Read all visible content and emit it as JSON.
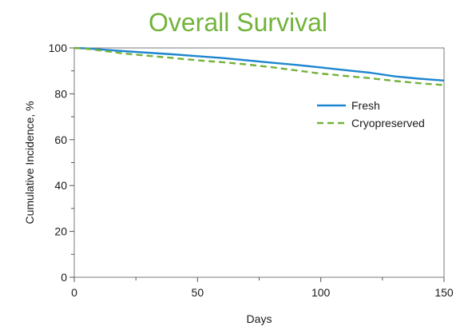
{
  "chart_data": {
    "type": "line",
    "title": "Overall Survival",
    "xlabel": "Days",
    "ylabel": "Cumulative Incidence, %",
    "xlim": [
      0,
      150
    ],
    "ylim": [
      0,
      100
    ],
    "x_ticks": [
      0,
      50,
      100,
      150
    ],
    "y_ticks": [
      0,
      20,
      40,
      60,
      80,
      100
    ],
    "grid": false,
    "legend_position": "right",
    "series": [
      {
        "name": "Fresh",
        "color": "#1f86d0",
        "style": "solid",
        "points": [
          [
            0,
            100
          ],
          [
            5,
            99.8
          ],
          [
            10,
            99.4
          ],
          [
            20,
            98.6
          ],
          [
            30,
            97.9
          ],
          [
            40,
            97.2
          ],
          [
            50,
            96.4
          ],
          [
            60,
            95.6
          ],
          [
            70,
            94.6
          ],
          [
            80,
            93.6
          ],
          [
            90,
            92.6
          ],
          [
            100,
            91.5
          ],
          [
            110,
            90.3
          ],
          [
            120,
            89.2
          ],
          [
            130,
            87.6
          ],
          [
            140,
            86.6
          ],
          [
            150,
            85.8
          ]
        ]
      },
      {
        "name": "Cryopreserved",
        "color": "#72b33a",
        "style": "dashed",
        "points": [
          [
            0,
            100
          ],
          [
            5,
            99.6
          ],
          [
            10,
            99.0
          ],
          [
            20,
            97.6
          ],
          [
            30,
            96.6
          ],
          [
            40,
            95.6
          ],
          [
            50,
            94.6
          ],
          [
            60,
            93.8
          ],
          [
            70,
            92.8
          ],
          [
            80,
            91.6
          ],
          [
            90,
            90.2
          ],
          [
            100,
            88.8
          ],
          [
            110,
            87.8
          ],
          [
            120,
            86.8
          ],
          [
            130,
            85.6
          ],
          [
            140,
            84.6
          ],
          [
            150,
            83.8
          ]
        ]
      }
    ]
  }
}
